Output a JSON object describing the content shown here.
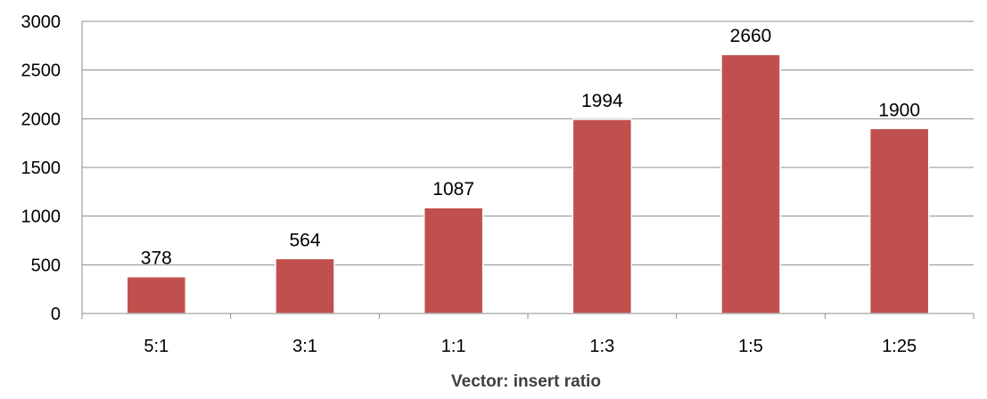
{
  "chart_data": {
    "type": "bar",
    "categories": [
      "5:1",
      "3:1",
      "1:1",
      "1:3",
      "1:5",
      "1:25"
    ],
    "values": [
      378,
      564,
      1087,
      1994,
      2660,
      1900
    ],
    "data_labels": [
      "378",
      "564",
      "1087",
      "1994",
      "2660",
      "1900"
    ],
    "xlabel": "Vector: insert ratio",
    "ylabel": "",
    "ylim": [
      0,
      3000
    ],
    "yticks": [
      "0",
      "500",
      "1000",
      "1500",
      "2000",
      "2500",
      "3000"
    ],
    "grid": true,
    "legend": "none",
    "bar_color": "#c0504d",
    "grid_color": "#8c8c8c"
  }
}
